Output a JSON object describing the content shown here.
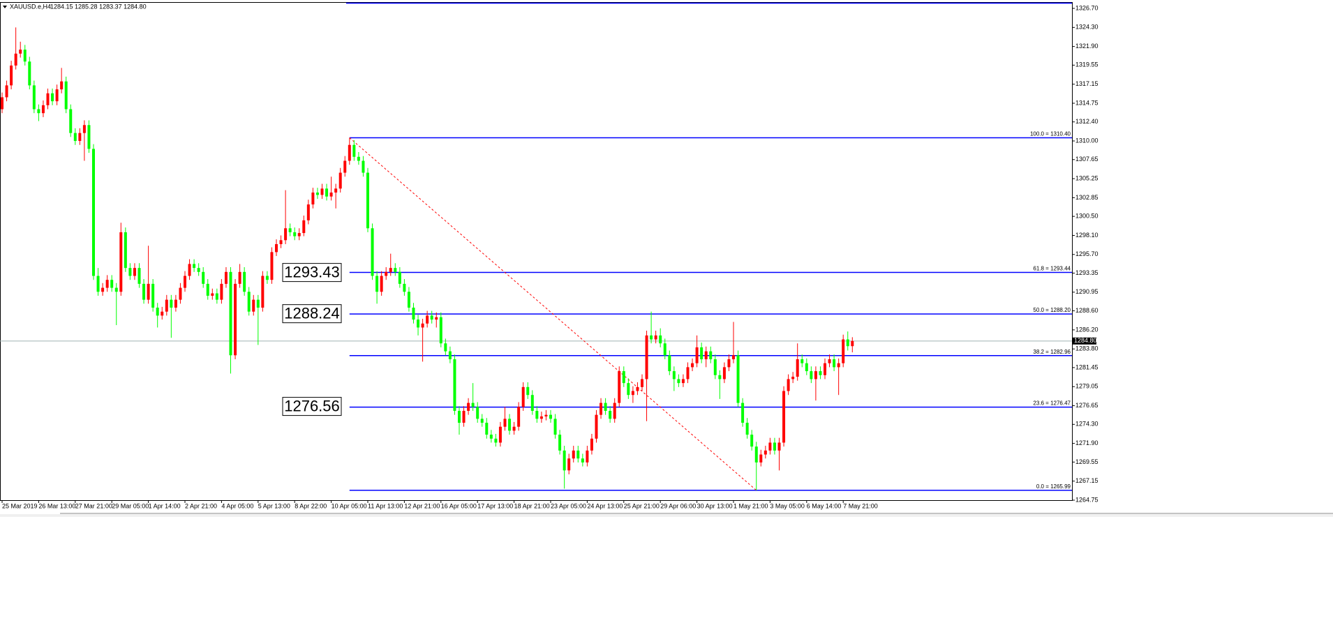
{
  "chart_data": {
    "type": "candlestick",
    "title": "XAUUSD.e,H4",
    "header_ohlc": "1284.15 1285.28 1283.37 1284.80",
    "up_color": "#ff0000",
    "down_color": "#00ff00",
    "ylim": [
      1264.75,
      1326.7
    ],
    "yticks": [
      {
        "value": 1326.7,
        "label": "1326.70"
      },
      {
        "value": 1324.3,
        "label": "1324.30"
      },
      {
        "value": 1321.9,
        "label": "1321.90"
      },
      1319.55,
      1317.15,
      1314.75,
      {
        "value": 1312.4,
        "label": "1312.40"
      },
      {
        "value": 1310,
        "label": "1310.00"
      },
      1307.65,
      1305.25,
      1302.85,
      {
        "value": 1300.5,
        "label": "1300.50"
      },
      {
        "value": 1298.1,
        "label": "1298.10"
      },
      {
        "value": 1295.7,
        "label": "1295.70"
      },
      1293.35,
      1290.95,
      {
        "value": 1288.6,
        "label": "1288.60"
      },
      {
        "value": 1286.2,
        "label": "1286.20"
      },
      {
        "value": 1283.8,
        "label": "1283.80"
      },
      1281.45,
      1279.05,
      1276.65,
      {
        "value": 1274.3,
        "label": "1274.30"
      },
      {
        "value": 1271.9,
        "label": "1271.90"
      },
      1269.55,
      1267.15,
      1264.75
    ],
    "xticks": [
      {
        "value": 0,
        "label": "25 Mar 2019"
      },
      {
        "value": 8,
        "label": "26 Mar 13:00"
      },
      {
        "value": 16,
        "label": "27 Mar 21:00"
      },
      {
        "value": 24,
        "label": "29 Mar 05:00"
      },
      {
        "value": 32,
        "label": "1 Apr 14:00"
      },
      {
        "value": 40,
        "label": "2 Apr 21:00"
      },
      {
        "value": 48,
        "label": "4 Apr 05:00"
      },
      {
        "value": 56,
        "label": "5 Apr 13:00"
      },
      {
        "value": 64,
        "label": "8 Apr 22:00"
      },
      {
        "value": 72,
        "label": "10 Apr 05:00"
      },
      {
        "value": 80,
        "label": "11 Apr 13:00"
      },
      {
        "value": 88,
        "label": "12 Apr 21:00"
      },
      {
        "value": 96,
        "label": "16 Apr 05:00"
      },
      {
        "value": 104,
        "label": "17 Apr 13:00"
      },
      {
        "value": 112,
        "label": "18 Apr 21:00"
      },
      {
        "value": 120,
        "label": "23 Apr 05:00"
      },
      {
        "value": 128,
        "label": "24 Apr 13:00"
      },
      {
        "value": 136,
        "label": "25 Apr 21:00"
      },
      {
        "value": 144,
        "label": "29 Apr 06:00"
      },
      {
        "value": 152,
        "label": "30 Apr 13:00"
      },
      {
        "value": 160,
        "label": "1 May 21:00"
      },
      {
        "value": 168,
        "label": "3 May 05:00"
      },
      {
        "value": 176,
        "label": "6 May 14:00"
      },
      {
        "value": 184,
        "label": "7 May 21:00"
      }
    ],
    "open": [
      1314,
      1315.5,
      1317,
      1319.5,
      1321,
      1321.5,
      1320,
      1317,
      1314,
      1313.5,
      1314.5,
      1316,
      1315,
      1316.5,
      1317.5,
      1314,
      1311,
      1310,
      1311,
      1312,
      1309,
      1293,
      1291,
      1291.5,
      1292.5,
      1291.5,
      1291,
      1298.5,
      1294,
      1293,
      1294,
      1292,
      1290,
      1292,
      1289,
      1288,
      1288.5,
      1290,
      1289,
      1290,
      1291.5,
      1293,
      1294.5,
      1294,
      1293.5,
      1292,
      1290.5,
      1290.8,
      1290,
      1292,
      1293.5,
      1283,
      1292,
      1293.5,
      1291,
      1288.5,
      1290,
      1289,
      1293,
      1292.5,
      1296,
      1297,
      1297.5,
      1299,
      1298.5,
      1298,
      1298.4,
      1300,
      1302,
      1303.5,
      1303.2,
      1304,
      1303,
      1303.5,
      1304,
      1306,
      1307.5,
      1309.5,
      1308,
      1307.5,
      1306,
      1299,
      1293,
      1291,
      1293,
      1293.5,
      1294,
      1293.5,
      1292,
      1291,
      1289,
      1287.5,
      1286.5,
      1287,
      1288,
      1287.5,
      1287.8,
      1284.5,
      1283.5,
      1282.5,
      1276,
      1274.5,
      1276,
      1277,
      1276.5,
      1275,
      1274.5,
      1273,
      1272.5,
      1272,
      1274,
      1275,
      1273.5,
      1274,
      1276.5,
      1279,
      1278,
      1276,
      1275,
      1275.3,
      1275.5,
      1275,
      1273,
      1271,
      1268.5,
      1270,
      1271,
      1270,
      1269.5,
      1271,
      1272.5,
      1275.5,
      1277,
      1276,
      1275,
      1277,
      1281,
      1279.5,
      1278,
      1278.5,
      1279,
      1280,
      1285.5,
      1285,
      1285.5,
      1284.5,
      1283,
      1281,
      1280,
      1279.5,
      1280,
      1281.5,
      1282,
      1284,
      1282.5,
      1283.5,
      1282.5,
      1280.5,
      1280,
      1281.5,
      1282.5,
      1283,
      1277,
      1274.5,
      1273,
      1271.5,
      1269.5,
      1270.5,
      1271,
      1272,
      1271,
      1272,
      1278.5,
      1280,
      1280.3,
      1282.5,
      1282,
      1281,
      1280,
      1281,
      1280.5,
      1282,
      1282.5,
      1281.5,
      1282,
      1285,
      1284.15
    ],
    "high": [
      1316.1,
      1317.6,
      1320.1,
      1324.3,
      1322.5,
      1322.1,
      1320.6,
      1317.6,
      1314.6,
      1315.1,
      1316.6,
      1316.6,
      1317.1,
      1319.2,
      1318.1,
      1314.6,
      1311.6,
      1311.6,
      1312.6,
      1312.6,
      1309.6,
      1294,
      1292.1,
      1293.1,
      1293.1,
      1292.1,
      1299.7,
      1299.1,
      1294.6,
      1294.6,
      1294.6,
      1292.6,
      1296.8,
      1292.6,
      1289.6,
      1289.1,
      1290.6,
      1290.6,
      1290.6,
      1292.1,
      1293.6,
      1295.1,
      1295.1,
      1294.6,
      1294.1,
      1292.6,
      1291.4,
      1291.4,
      1292.6,
      1294.1,
      1294.1,
      1292.6,
      1294.5,
      1294.1,
      1291.6,
      1290.6,
      1290.6,
      1293.6,
      1293.6,
      1296.6,
      1297.6,
      1298.1,
      1303.8,
      1299.6,
      1299.1,
      1299,
      1300.6,
      1302.6,
      1304.1,
      1304.1,
      1304.6,
      1304.6,
      1305.5,
      1304.6,
      1306.6,
      1308.1,
      1310.4,
      1310.1,
      1308.6,
      1308.1,
      1306.6,
      1299.6,
      1293.6,
      1293.6,
      1294.1,
      1295.8,
      1294.6,
      1294.1,
      1292.6,
      1291.6,
      1289.6,
      1288.1,
      1287.6,
      1288.6,
      1288.6,
      1288.4,
      1288.4,
      1285.1,
      1284.1,
      1283.1,
      1276.6,
      1276.6,
      1277.6,
      1279.5,
      1277.1,
      1275.6,
      1275.1,
      1273.6,
      1273.1,
      1274.6,
      1276.5,
      1275.6,
      1274.6,
      1277.1,
      1279.6,
      1279.6,
      1278.6,
      1276.6,
      1275.9,
      1276.1,
      1276.1,
      1275.6,
      1273.6,
      1271.6,
      1270.6,
      1271.6,
      1271.6,
      1270.6,
      1271.6,
      1273.1,
      1276.1,
      1277.6,
      1277.6,
      1276.6,
      1277.6,
      1281.6,
      1281.6,
      1280.1,
      1279.1,
      1279.6,
      1280.6,
      1286.1,
      1288.5,
      1286.1,
      1286.4,
      1285.1,
      1283.6,
      1281.6,
      1280.6,
      1280.6,
      1282.1,
      1282.6,
      1285.5,
      1284.6,
      1284.1,
      1284.1,
      1283.1,
      1281.1,
      1282.1,
      1283.1,
      1287.2,
      1283.6,
      1277.6,
      1275.1,
      1273.6,
      1272.1,
      1271.1,
      1271.6,
      1272.6,
      1272.6,
      1272.6,
      1279.1,
      1280.6,
      1280.9,
      1284.5,
      1283.1,
      1282.6,
      1281.6,
      1281.6,
      1281.6,
      1282.6,
      1283.1,
      1283.1,
      1282.6,
      1285.6,
      1286,
      1285.28
    ],
    "low": [
      1313.5,
      1315,
      1316.5,
      1319,
      1320.5,
      1319.5,
      1316.5,
      1313.5,
      1312.5,
      1313,
      1314,
      1314.5,
      1314.5,
      1316,
      1313.5,
      1310.5,
      1309.5,
      1309.5,
      1307.5,
      1308.5,
      1292.5,
      1290.5,
      1290.5,
      1291,
      1291,
      1286.8,
      1290.5,
      1293.5,
      1292.5,
      1292.5,
      1291.5,
      1289.5,
      1289.5,
      1288.5,
      1286.5,
      1287.5,
      1288,
      1285.2,
      1288.5,
      1289.5,
      1291,
      1292.5,
      1293.5,
      1293,
      1291.5,
      1290,
      1290,
      1289.5,
      1289.5,
      1291.5,
      1280.7,
      1282.5,
      1291.5,
      1290.5,
      1288,
      1288,
      1284.3,
      1288.5,
      1292,
      1292,
      1295.5,
      1296.5,
      1297,
      1298,
      1297.5,
      1297.5,
      1298,
      1299.5,
      1301.5,
      1302.7,
      1302.7,
      1302.5,
      1302.5,
      1301.5,
      1303.5,
      1305.5,
      1307,
      1307.5,
      1307,
      1305.5,
      1298.5,
      1292.5,
      1289.5,
      1290.5,
      1292.5,
      1293,
      1293,
      1291.5,
      1290.5,
      1288.5,
      1287,
      1285.5,
      1282.2,
      1286.5,
      1287,
      1286.5,
      1284,
      1283,
      1282,
      1275.5,
      1273,
      1274,
      1275.5,
      1276,
      1274.5,
      1274,
      1272.5,
      1272,
      1271.5,
      1271.5,
      1273.5,
      1273,
      1273,
      1273.5,
      1276,
      1277.5,
      1275.5,
      1274.5,
      1274.5,
      1274.8,
      1274.5,
      1272.5,
      1270.5,
      1266.2,
      1268,
      1269.5,
      1269.5,
      1269,
      1269,
      1270.5,
      1272,
      1275,
      1275.5,
      1274.5,
      1274.5,
      1276.5,
      1279,
      1277.5,
      1277,
      1278,
      1278.5,
      1274.7,
      1284.5,
      1284.5,
      1284,
      1282.5,
      1280.5,
      1278.5,
      1279,
      1279,
      1279.5,
      1281,
      1281.5,
      1282,
      1281.5,
      1282,
      1280,
      1277.5,
      1279.5,
      1281,
      1282,
      1276.5,
      1274,
      1272.5,
      1271,
      1265.99,
      1269,
      1270,
      1270.5,
      1270.5,
      1268.5,
      1271.5,
      1278,
      1279.5,
      1279.8,
      1281.5,
      1280.5,
      1279.5,
      1277.3,
      1280,
      1280,
      1281.5,
      1281,
      1278,
      1281.5,
      1283.6,
      1283.37
    ],
    "close": [
      1315.5,
      1317,
      1319.5,
      1321,
      1321.5,
      1320,
      1317,
      1314,
      1313.5,
      1314.5,
      1316,
      1315,
      1316.5,
      1317.5,
      1314,
      1311,
      1310,
      1311,
      1312,
      1309,
      1293,
      1291,
      1291.5,
      1292.5,
      1291.5,
      1291,
      1298.5,
      1294,
      1293,
      1294,
      1292,
      1290,
      1292,
      1289,
      1288,
      1288.5,
      1290,
      1289,
      1290,
      1291.5,
      1293,
      1294.5,
      1294,
      1293.5,
      1292,
      1290.5,
      1290.8,
      1290,
      1292,
      1293.5,
      1283,
      1292,
      1293.5,
      1291,
      1288.5,
      1290,
      1289,
      1293,
      1292.5,
      1296,
      1297,
      1297.5,
      1299,
      1298.5,
      1298,
      1298.4,
      1300,
      1302,
      1303.5,
      1303.2,
      1304,
      1303,
      1303.5,
      1304,
      1306,
      1307.5,
      1309.5,
      1308,
      1307.5,
      1306,
      1299,
      1293,
      1291,
      1293,
      1293.5,
      1294,
      1293.5,
      1292,
      1291,
      1289,
      1287.5,
      1286.5,
      1287,
      1288,
      1287.5,
      1287.8,
      1284.5,
      1283.5,
      1282.5,
      1276,
      1274.5,
      1276,
      1277,
      1276.5,
      1275,
      1274.5,
      1273,
      1272.5,
      1272,
      1274,
      1275,
      1273.5,
      1274,
      1276.5,
      1279,
      1278,
      1276,
      1275,
      1275.3,
      1275.5,
      1275,
      1273,
      1271,
      1268.5,
      1270,
      1271,
      1270,
      1269.5,
      1271,
      1272.5,
      1275.5,
      1277,
      1276,
      1275,
      1277,
      1281,
      1279.5,
      1278,
      1278.5,
      1279,
      1280,
      1285.5,
      1285,
      1285.5,
      1284.5,
      1283,
      1281,
      1280,
      1279.5,
      1280,
      1281.5,
      1282,
      1284,
      1282.5,
      1283.5,
      1282.5,
      1280.5,
      1280,
      1281.5,
      1282.5,
      1283,
      1277,
      1274.5,
      1273,
      1271.5,
      1269.5,
      1270.5,
      1271,
      1272,
      1271,
      1272,
      1278.5,
      1280,
      1280.3,
      1282.5,
      1282,
      1281,
      1280,
      1281,
      1280.5,
      1282,
      1282.5,
      1281.5,
      1282,
      1285,
      1284.15,
      1284.8
    ],
    "current_price": {
      "value": 1284.8,
      "label": "1284.80"
    },
    "fibonacci": {
      "from": 76,
      "to": 165,
      "color": "#0000ff",
      "trend_color": "#ff0000",
      "levels": [
        {
          "value": 1310.4,
          "label": "100.0 = 1310.40"
        },
        {
          "value": 1293.44,
          "label": "61.8 = 1293.44"
        },
        {
          "value": 1288.2,
          "label": "50.0 = 1288.20"
        },
        {
          "value": 1282.96,
          "label": "38.2 = 1282.96"
        },
        {
          "value": 1276.47,
          "label": "23.6 = 1276.47"
        },
        {
          "value": 1265.99,
          "label": "0.0 = 1265.99"
        }
      ]
    },
    "price_labels": [
      1293.43,
      1288.24,
      1276.56
    ]
  }
}
